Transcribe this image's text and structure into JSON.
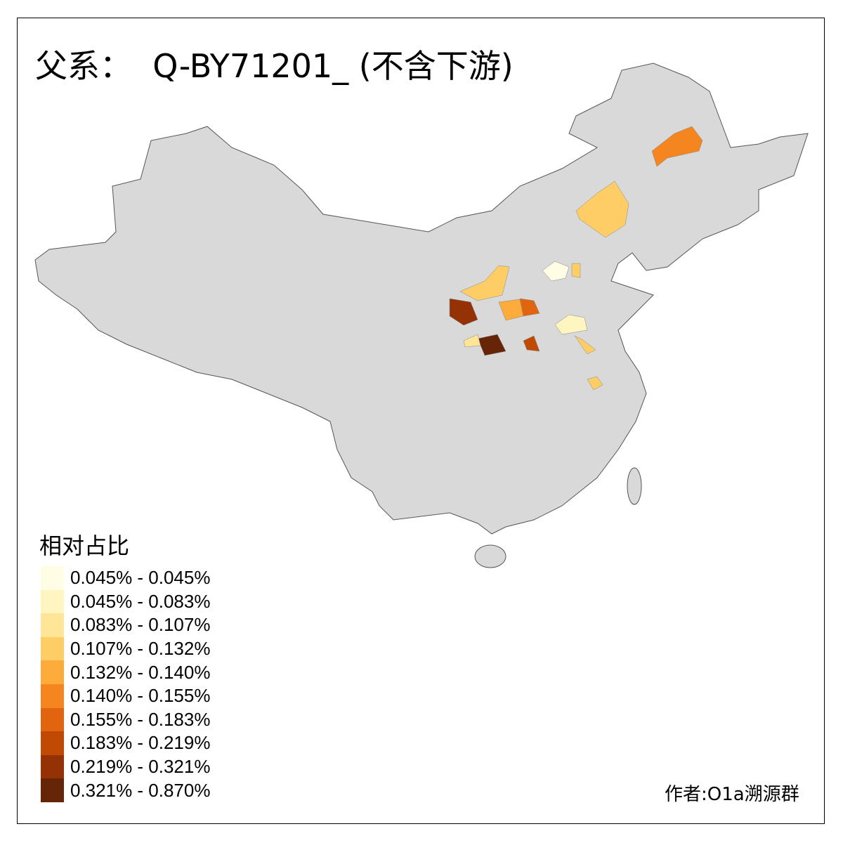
{
  "title": "父系：  Q-BY71201_ (不含下游)",
  "legend": {
    "title": "相对占比",
    "items": [
      {
        "label": "0.045% - 0.045%",
        "color": "#FFFDE3"
      },
      {
        "label": "0.045% - 0.083%",
        "color": "#FFF5C0"
      },
      {
        "label": "0.083% - 0.107%",
        "color": "#FEE597"
      },
      {
        "label": "0.107% - 0.132%",
        "color": "#FECD66"
      },
      {
        "label": "0.132% - 0.140%",
        "color": "#FDAB3B"
      },
      {
        "label": "0.140% - 0.155%",
        "color": "#F5861F"
      },
      {
        "label": "0.155% - 0.183%",
        "color": "#E1640F"
      },
      {
        "label": "0.183% - 0.219%",
        "color": "#C04A04"
      },
      {
        "label": "0.219% - 0.321%",
        "color": "#943205"
      },
      {
        "label": "0.321% - 0.870%",
        "color": "#662506"
      }
    ]
  },
  "credit": "作者:O1a溯源群",
  "colors": {
    "base_region": "#D9D9D9",
    "border": "#555555"
  }
}
